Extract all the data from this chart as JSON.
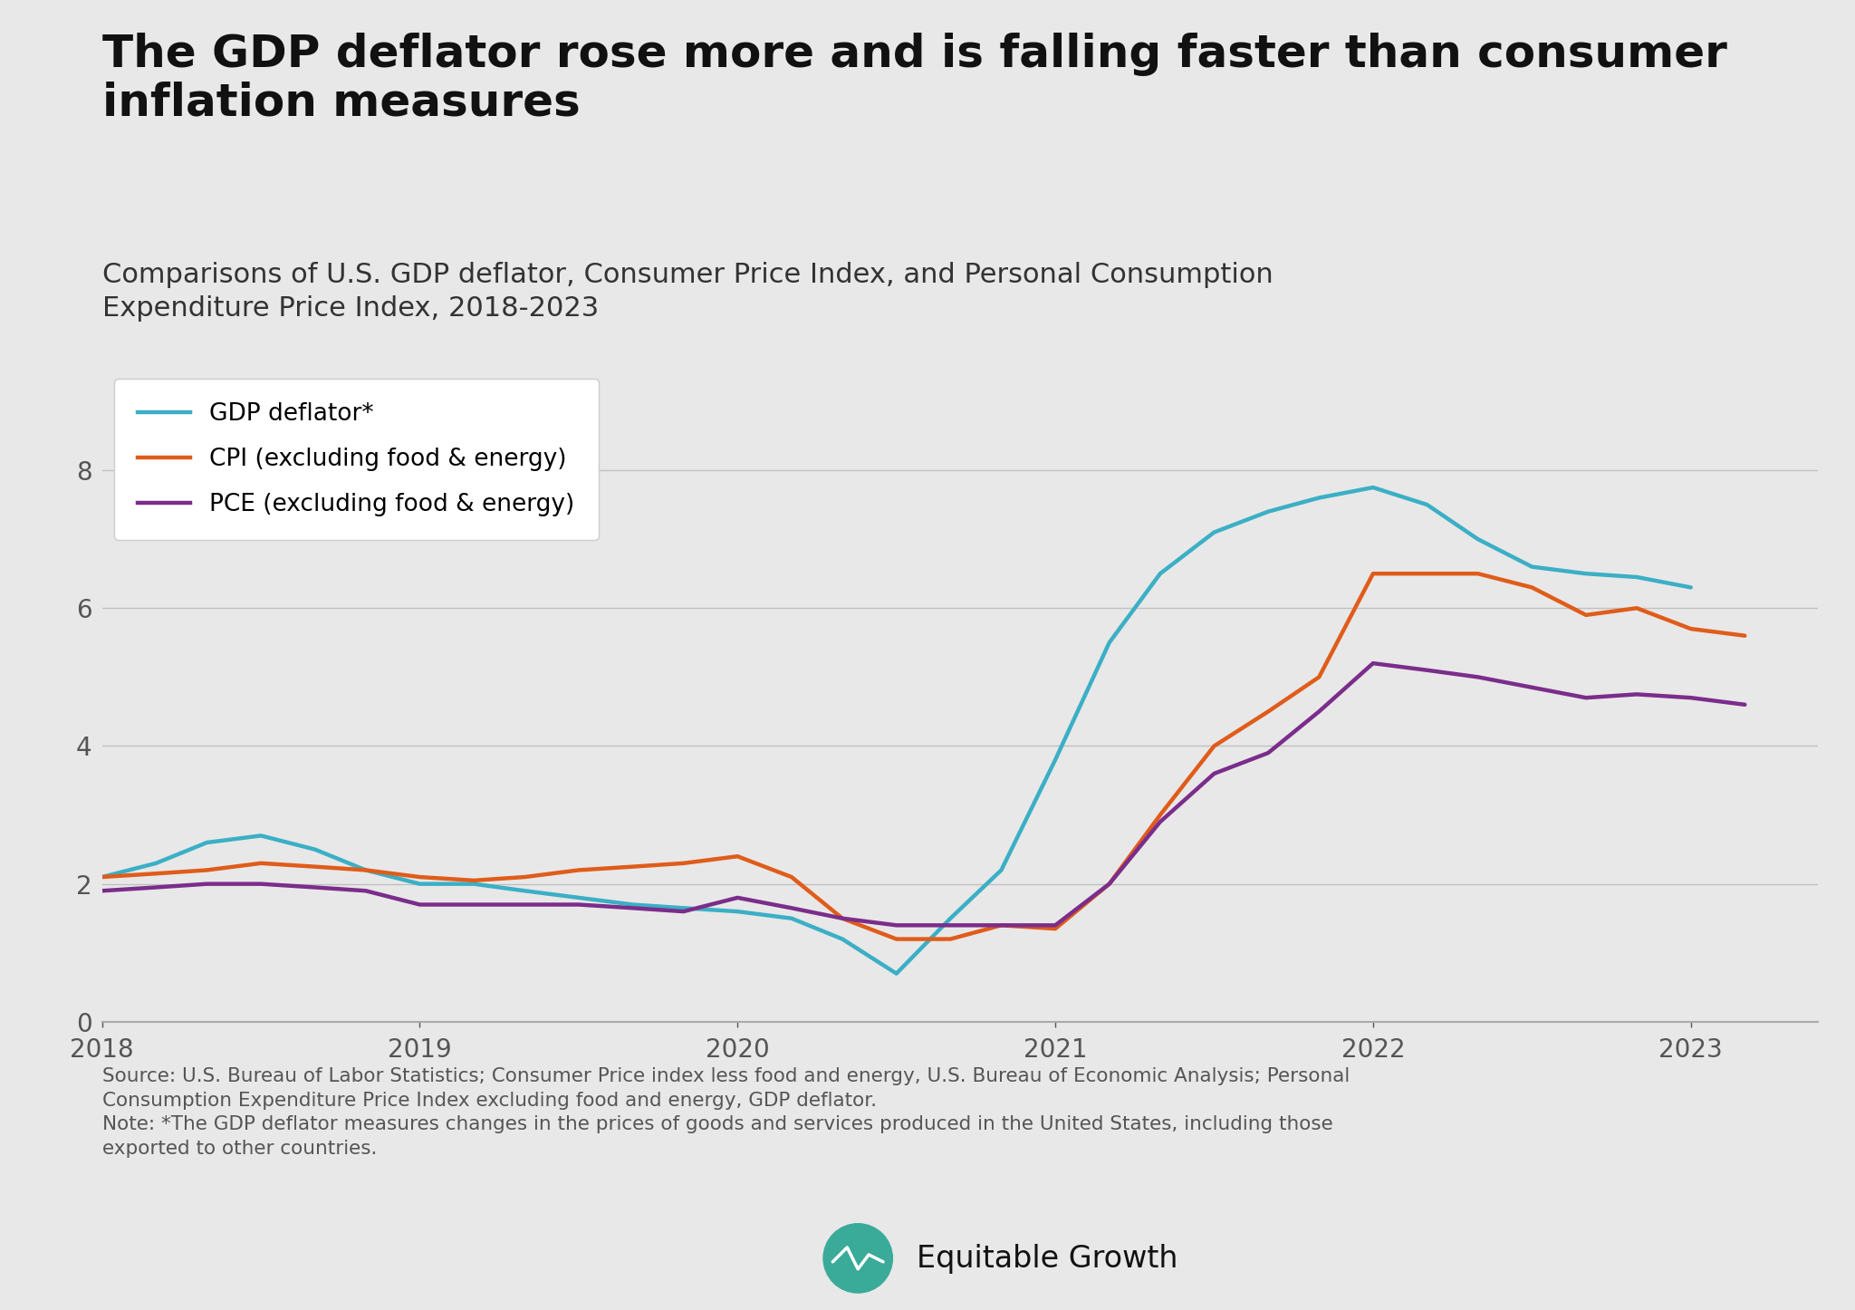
{
  "title": "The GDP deflator rose more and is falling faster than consumer\ninflation measures",
  "subtitle": "Comparisons of U.S. GDP deflator, Consumer Price Index, and Personal Consumption\nExpenditure Price Index, 2018-2023",
  "source_text": "Source: U.S. Bureau of Labor Statistics; Consumer Price index less food and energy, U.S. Bureau of Economic Analysis; Personal\nConsumption Expenditure Price Index excluding food and energy, GDP deflator.\nNote: *The GDP deflator measures changes in the prices of goods and services produced in the United States, including those\nexported to other countries.",
  "background_color": "#e8e8e8",
  "gdp_color": "#3bafc5",
  "cpi_color": "#e05c1a",
  "pce_color": "#7b2d8b",
  "legend_labels": [
    "GDP deflator*",
    "CPI (excluding food & energy)",
    "PCE (excluding food & energy)"
  ],
  "ylim": [
    0,
    9.5
  ],
  "yticks": [
    0,
    2,
    4,
    6,
    8
  ],
  "gdp_x": [
    2018.0,
    2018.17,
    2018.33,
    2018.5,
    2018.67,
    2018.83,
    2019.0,
    2019.17,
    2019.33,
    2019.5,
    2019.67,
    2019.83,
    2020.0,
    2020.17,
    2020.33,
    2020.5,
    2020.67,
    2020.83,
    2021.0,
    2021.17,
    2021.33,
    2021.5,
    2021.67,
    2021.83,
    2022.0,
    2022.17,
    2022.33,
    2022.5,
    2022.67,
    2022.83,
    2023.0
  ],
  "gdp_y": [
    2.1,
    2.3,
    2.6,
    2.7,
    2.5,
    2.2,
    2.0,
    2.0,
    1.9,
    1.8,
    1.7,
    1.65,
    1.6,
    1.5,
    1.2,
    0.7,
    1.5,
    2.2,
    3.8,
    5.5,
    6.5,
    7.1,
    7.4,
    7.6,
    7.75,
    7.5,
    7.0,
    6.6,
    6.5,
    6.45,
    6.3
  ],
  "cpi_x": [
    2018.0,
    2018.17,
    2018.33,
    2018.5,
    2018.67,
    2018.83,
    2019.0,
    2019.17,
    2019.33,
    2019.5,
    2019.67,
    2019.83,
    2020.0,
    2020.17,
    2020.33,
    2020.5,
    2020.67,
    2020.83,
    2021.0,
    2021.17,
    2021.33,
    2021.5,
    2021.67,
    2021.83,
    2022.0,
    2022.17,
    2022.33,
    2022.5,
    2022.67,
    2022.83,
    2023.0,
    2023.17
  ],
  "cpi_y": [
    2.1,
    2.15,
    2.2,
    2.3,
    2.25,
    2.2,
    2.1,
    2.05,
    2.1,
    2.2,
    2.25,
    2.3,
    2.4,
    2.1,
    1.5,
    1.2,
    1.2,
    1.4,
    1.35,
    2.0,
    3.0,
    4.0,
    4.5,
    5.0,
    6.5,
    6.5,
    6.5,
    6.3,
    5.9,
    6.0,
    5.7,
    5.6
  ],
  "pce_x": [
    2018.0,
    2018.17,
    2018.33,
    2018.5,
    2018.67,
    2018.83,
    2019.0,
    2019.17,
    2019.33,
    2019.5,
    2019.67,
    2019.83,
    2020.0,
    2020.17,
    2020.33,
    2020.5,
    2020.67,
    2020.83,
    2021.0,
    2021.17,
    2021.33,
    2021.5,
    2021.67,
    2021.83,
    2022.0,
    2022.17,
    2022.33,
    2022.5,
    2022.67,
    2022.83,
    2023.0,
    2023.17
  ],
  "pce_y": [
    1.9,
    1.95,
    2.0,
    2.0,
    1.95,
    1.9,
    1.7,
    1.7,
    1.7,
    1.7,
    1.65,
    1.6,
    1.8,
    1.65,
    1.5,
    1.4,
    1.4,
    1.4,
    1.4,
    2.0,
    2.9,
    3.6,
    3.9,
    4.5,
    5.2,
    5.1,
    5.0,
    4.85,
    4.7,
    4.75,
    4.7,
    4.6
  ]
}
